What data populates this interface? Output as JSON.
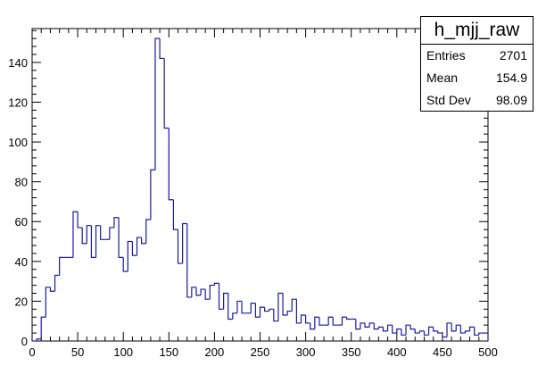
{
  "chart_data": {
    "type": "histogram",
    "title": "",
    "xlabel": "",
    "ylabel": "",
    "xlim": [
      0,
      500
    ],
    "ylim": [
      0,
      157
    ],
    "grid": false,
    "bin_width": 5,
    "bin_low_edges": [
      0,
      5,
      10,
      15,
      20,
      25,
      30,
      35,
      40,
      45,
      50,
      55,
      60,
      65,
      70,
      75,
      80,
      85,
      90,
      95,
      100,
      105,
      110,
      115,
      120,
      125,
      130,
      135,
      140,
      145,
      150,
      155,
      160,
      165,
      170,
      175,
      180,
      185,
      190,
      195,
      200,
      205,
      210,
      215,
      220,
      225,
      230,
      235,
      240,
      245,
      250,
      255,
      260,
      265,
      270,
      275,
      280,
      285,
      290,
      295,
      300,
      305,
      310,
      315,
      320,
      325,
      330,
      335,
      340,
      345,
      350,
      355,
      360,
      365,
      370,
      375,
      380,
      385,
      390,
      395,
      400,
      405,
      410,
      415,
      420,
      425,
      430,
      435,
      440,
      445,
      450,
      455,
      460,
      465,
      470,
      475,
      480,
      485,
      490,
      495
    ],
    "values": [
      0,
      1,
      12,
      27,
      25,
      33,
      42,
      42,
      42,
      65,
      57,
      49,
      58,
      42,
      58,
      51,
      51,
      57,
      62,
      42,
      35,
      50,
      43,
      52,
      49,
      61,
      86,
      152,
      142,
      107,
      71,
      56,
      39,
      59,
      22,
      27,
      23,
      26,
      21,
      28,
      29,
      16,
      24,
      11,
      14,
      20,
      14,
      14,
      19,
      12,
      17,
      15,
      16,
      10,
      24,
      13,
      15,
      21,
      9,
      13,
      9,
      6,
      12,
      8,
      8,
      12,
      8,
      8,
      12,
      11,
      11,
      6,
      9,
      7,
      9,
      6,
      7,
      5,
      8,
      4,
      6,
      3,
      8,
      6,
      4,
      5,
      3,
      7,
      5,
      4,
      2,
      9,
      5,
      8,
      4,
      5,
      7,
      3,
      4,
      4
    ],
    "x_ticks": [
      0,
      50,
      100,
      150,
      200,
      250,
      300,
      350,
      400,
      450,
      500
    ],
    "y_ticks": [
      0,
      20,
      40,
      60,
      80,
      100,
      120,
      140
    ],
    "stats": {
      "name": "h_mjj_raw",
      "rows": [
        {
          "label": "Entries",
          "value": "2701"
        },
        {
          "label": "Mean",
          "value": "154.9"
        },
        {
          "label": "Std Dev",
          "value": "98.09"
        }
      ]
    },
    "colors": {
      "line": "#1a1aa0",
      "axis": "#000000"
    }
  }
}
